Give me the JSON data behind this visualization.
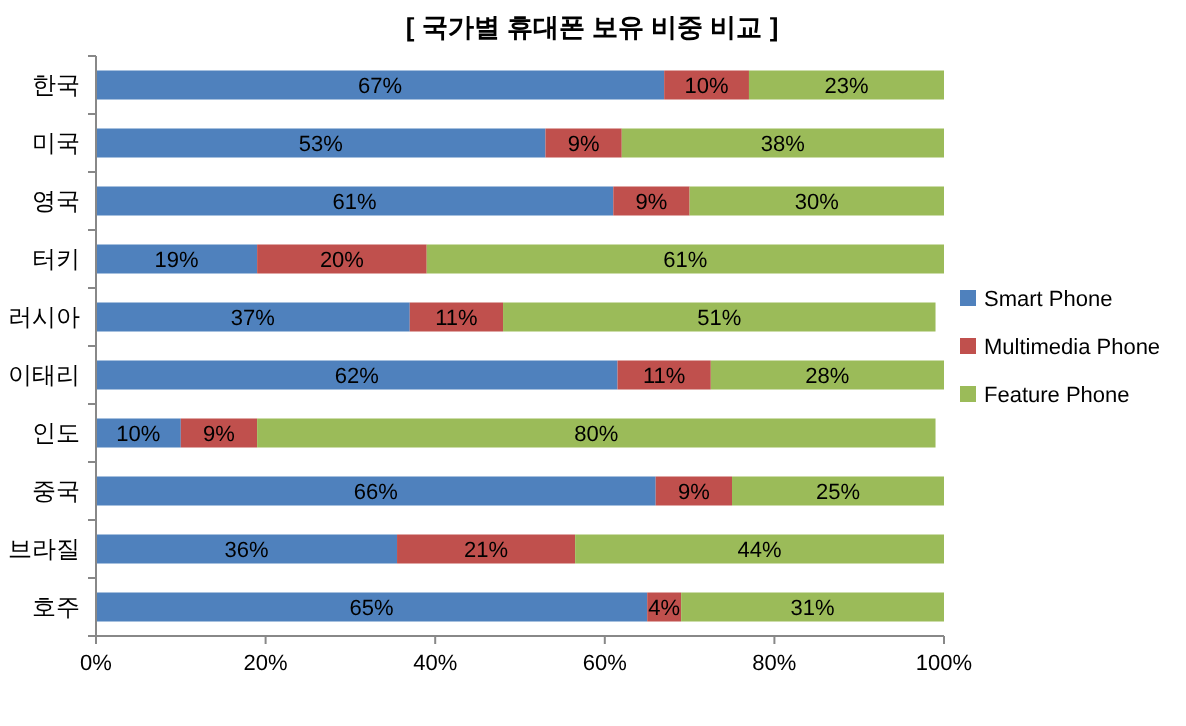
{
  "chart_data": {
    "type": "bar",
    "orientation": "horizontal",
    "stacked": true,
    "title": "[ 국가별 휴대폰 보유 비중 비교 ]",
    "categories": [
      "한국",
      "미국",
      "영국",
      "터키",
      "러시아",
      "이태리",
      "인도",
      "중국",
      "브라질",
      "호주"
    ],
    "series": [
      {
        "name": "Smart Phone",
        "color": "#4f81bd",
        "values": [
          67,
          53,
          61,
          19,
          37,
          61.5,
          10,
          66,
          35.5,
          65
        ],
        "value_labels": [
          "67%",
          "53%",
          "61%",
          "19%",
          "37%",
          "62%",
          "10%",
          "66%",
          "36%",
          "65%"
        ]
      },
      {
        "name": "Multimedia Phone",
        "color": "#c0504d",
        "values": [
          10,
          9,
          9,
          20,
          11,
          11,
          9,
          9,
          21,
          4
        ],
        "value_labels": [
          "10%",
          "9%",
          "9%",
          "20%",
          "11%",
          "11%",
          "9%",
          "9%",
          "21%",
          "4%"
        ]
      },
      {
        "name": "Feature Phone",
        "color": "#9bbb59",
        "values": [
          23,
          38,
          30,
          61,
          51,
          27.5,
          80,
          25,
          43.5,
          31
        ],
        "value_labels": [
          "23%",
          "38%",
          "30%",
          "61%",
          "51%",
          "28%",
          "80%",
          "25%",
          "44%",
          "31%"
        ]
      }
    ],
    "xlim": [
      0,
      100
    ],
    "xticks": [
      {
        "value": 0,
        "label": "0%"
      },
      {
        "value": 20,
        "label": "20%"
      },
      {
        "value": 40,
        "label": "40%"
      },
      {
        "value": 60,
        "label": "60%"
      },
      {
        "value": 80,
        "label": "80%"
      },
      {
        "value": 100,
        "label": "100%"
      }
    ],
    "legend": "right",
    "grid": false
  }
}
